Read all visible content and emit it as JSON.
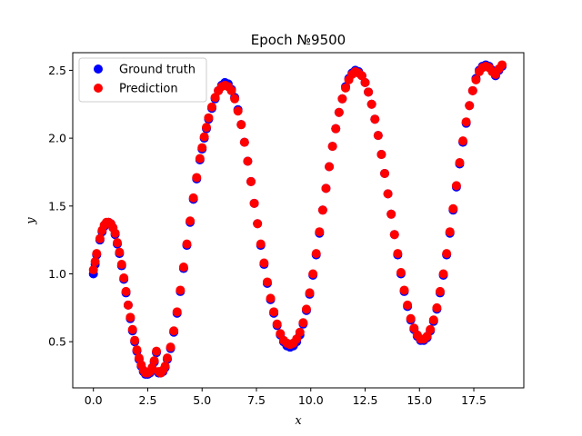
{
  "chart_data": {
    "type": "scatter",
    "title": "Epoch №9500",
    "xlabel": "x",
    "ylabel": "y",
    "xlim": [
      -0.95,
      19.8
    ],
    "ylim": [
      0.16,
      2.63
    ],
    "xticks": [
      0.0,
      2.5,
      5.0,
      7.5,
      10.0,
      12.5,
      15.0,
      17.5
    ],
    "xtick_labels": [
      "0.0",
      "2.5",
      "5.0",
      "7.5",
      "10.0",
      "12.5",
      "15.0",
      "17.5"
    ],
    "yticks": [
      0.5,
      1.0,
      1.5,
      2.0,
      2.5
    ],
    "ytick_labels": [
      "0.5",
      "1.0",
      "1.5",
      "2.0",
      "2.5"
    ],
    "grid": false,
    "legend_position": "top-left",
    "series": [
      {
        "name": "Ground truth",
        "color": "#0000ff",
        "x": [
          0.0,
          0.08,
          0.15,
          0.3,
          0.4,
          0.5,
          0.6,
          0.7,
          0.8,
          0.9,
          1.0,
          1.1,
          1.2,
          1.3,
          1.4,
          1.5,
          1.6,
          1.7,
          1.8,
          1.9,
          2.0,
          2.1,
          2.2,
          2.3,
          2.4,
          2.5,
          2.6,
          2.7,
          2.8,
          2.9,
          3.0,
          3.1,
          3.2,
          3.3,
          3.4,
          3.55,
          3.7,
          3.85,
          4.0,
          4.15,
          4.3,
          4.45,
          4.6,
          4.75,
          4.9,
          5.0,
          5.1,
          5.2,
          5.3,
          5.45,
          5.6,
          5.75,
          5.9,
          6.05,
          6.2,
          6.35,
          6.5,
          6.65,
          6.8,
          6.95,
          7.1,
          7.25,
          7.4,
          7.55,
          7.7,
          7.85,
          8.0,
          8.15,
          8.3,
          8.45,
          8.6,
          8.75,
          8.9,
          9.05,
          9.2,
          9.35,
          9.5,
          9.65,
          9.8,
          9.95,
          10.1,
          10.25,
          10.4,
          10.55,
          10.7,
          10.85,
          11.0,
          11.15,
          11.3,
          11.45,
          11.6,
          11.75,
          11.9,
          12.05,
          12.2,
          12.35,
          12.5,
          12.65,
          12.8,
          12.95,
          13.1,
          13.25,
          13.4,
          13.55,
          13.7,
          13.85,
          14.0,
          14.15,
          14.3,
          14.45,
          14.6,
          14.75,
          14.9,
          15.05,
          15.2,
          15.35,
          15.5,
          15.65,
          15.8,
          15.95,
          16.1,
          16.25,
          16.4,
          16.55,
          16.7,
          16.85,
          17.0,
          17.15,
          17.3,
          17.45,
          17.6,
          17.75,
          17.9,
          18.05,
          18.2,
          18.35,
          18.5,
          18.65,
          18.8
        ],
        "y": [
          1.0,
          1.07,
          1.14,
          1.25,
          1.31,
          1.35,
          1.37,
          1.38,
          1.37,
          1.34,
          1.29,
          1.22,
          1.15,
          1.06,
          0.96,
          0.86,
          0.77,
          0.67,
          0.58,
          0.5,
          0.43,
          0.37,
          0.32,
          0.28,
          0.26,
          0.26,
          0.27,
          0.3,
          0.35,
          0.42,
          0.27,
          0.27,
          0.28,
          0.31,
          0.37,
          0.45,
          0.57,
          0.71,
          0.87,
          1.04,
          1.21,
          1.38,
          1.55,
          1.7,
          1.84,
          1.92,
          2.0,
          2.07,
          2.14,
          2.22,
          2.29,
          2.35,
          2.39,
          2.41,
          2.4,
          2.36,
          2.3,
          2.21,
          2.1,
          1.97,
          1.83,
          1.68,
          1.52,
          1.37,
          1.21,
          1.07,
          0.93,
          0.81,
          0.71,
          0.62,
          0.55,
          0.5,
          0.47,
          0.46,
          0.47,
          0.5,
          0.55,
          0.63,
          0.73,
          0.85,
          0.99,
          1.14,
          1.3,
          1.47,
          1.63,
          1.79,
          1.94,
          2.07,
          2.19,
          2.29,
          2.38,
          2.44,
          2.48,
          2.5,
          2.49,
          2.46,
          2.41,
          2.34,
          2.25,
          2.14,
          2.02,
          1.88,
          1.74,
          1.59,
          1.44,
          1.29,
          1.14,
          1.0,
          0.87,
          0.76,
          0.66,
          0.59,
          0.54,
          0.51,
          0.51,
          0.53,
          0.58,
          0.65,
          0.74,
          0.86,
          0.99,
          1.14,
          1.3,
          1.47,
          1.64,
          1.81,
          1.97,
          2.11,
          2.24,
          2.35,
          2.44,
          2.5,
          2.53,
          2.54,
          2.53,
          2.5,
          2.46,
          2.5,
          2.53
        ]
      },
      {
        "name": "Prediction",
        "color": "#ff0000",
        "x": [
          0.0,
          0.08,
          0.15,
          0.3,
          0.4,
          0.5,
          0.6,
          0.7,
          0.8,
          0.9,
          1.0,
          1.1,
          1.2,
          1.3,
          1.4,
          1.5,
          1.6,
          1.7,
          1.8,
          1.9,
          2.0,
          2.1,
          2.2,
          2.3,
          2.4,
          2.5,
          2.6,
          2.7,
          2.8,
          2.9,
          3.0,
          3.1,
          3.2,
          3.3,
          3.4,
          3.55,
          3.7,
          3.85,
          4.0,
          4.15,
          4.3,
          4.45,
          4.6,
          4.75,
          4.9,
          5.0,
          5.1,
          5.2,
          5.3,
          5.45,
          5.6,
          5.75,
          5.9,
          6.05,
          6.2,
          6.35,
          6.5,
          6.65,
          6.8,
          6.95,
          7.1,
          7.25,
          7.4,
          7.55,
          7.7,
          7.85,
          8.0,
          8.15,
          8.3,
          8.45,
          8.6,
          8.75,
          8.9,
          9.05,
          9.2,
          9.35,
          9.5,
          9.65,
          9.8,
          9.95,
          10.1,
          10.25,
          10.4,
          10.55,
          10.7,
          10.85,
          11.0,
          11.15,
          11.3,
          11.45,
          11.6,
          11.75,
          11.9,
          12.05,
          12.2,
          12.35,
          12.5,
          12.65,
          12.8,
          12.95,
          13.1,
          13.25,
          13.4,
          13.55,
          13.7,
          13.85,
          14.0,
          14.15,
          14.3,
          14.45,
          14.6,
          14.75,
          14.9,
          15.05,
          15.2,
          15.35,
          15.5,
          15.65,
          15.8,
          15.95,
          16.1,
          16.25,
          16.4,
          16.55,
          16.7,
          16.85,
          17.0,
          17.15,
          17.3,
          17.45,
          17.6,
          17.75,
          17.9,
          18.05,
          18.2,
          18.35,
          18.5,
          18.65,
          18.8
        ],
        "y": [
          1.03,
          1.09,
          1.15,
          1.26,
          1.32,
          1.36,
          1.38,
          1.38,
          1.37,
          1.34,
          1.3,
          1.23,
          1.16,
          1.07,
          0.97,
          0.87,
          0.77,
          0.68,
          0.59,
          0.51,
          0.44,
          0.38,
          0.33,
          0.29,
          0.27,
          0.27,
          0.28,
          0.31,
          0.36,
          0.43,
          0.28,
          0.27,
          0.29,
          0.32,
          0.38,
          0.46,
          0.58,
          0.72,
          0.88,
          1.05,
          1.22,
          1.39,
          1.56,
          1.71,
          1.85,
          1.93,
          2.01,
          2.08,
          2.15,
          2.23,
          2.3,
          2.35,
          2.38,
          2.39,
          2.38,
          2.35,
          2.29,
          2.2,
          2.1,
          1.97,
          1.83,
          1.68,
          1.52,
          1.37,
          1.22,
          1.08,
          0.94,
          0.82,
          0.72,
          0.63,
          0.56,
          0.51,
          0.49,
          0.48,
          0.49,
          0.52,
          0.57,
          0.64,
          0.74,
          0.86,
          1.0,
          1.15,
          1.31,
          1.47,
          1.63,
          1.79,
          1.94,
          2.07,
          2.19,
          2.29,
          2.37,
          2.43,
          2.47,
          2.49,
          2.48,
          2.46,
          2.41,
          2.34,
          2.25,
          2.14,
          2.02,
          1.88,
          1.74,
          1.59,
          1.44,
          1.29,
          1.15,
          1.01,
          0.88,
          0.77,
          0.67,
          0.6,
          0.55,
          0.52,
          0.52,
          0.54,
          0.59,
          0.66,
          0.75,
          0.87,
          1.0,
          1.15,
          1.31,
          1.48,
          1.65,
          1.82,
          1.98,
          2.12,
          2.24,
          2.35,
          2.43,
          2.49,
          2.52,
          2.53,
          2.52,
          2.49,
          2.47,
          2.51,
          2.54
        ]
      }
    ]
  }
}
